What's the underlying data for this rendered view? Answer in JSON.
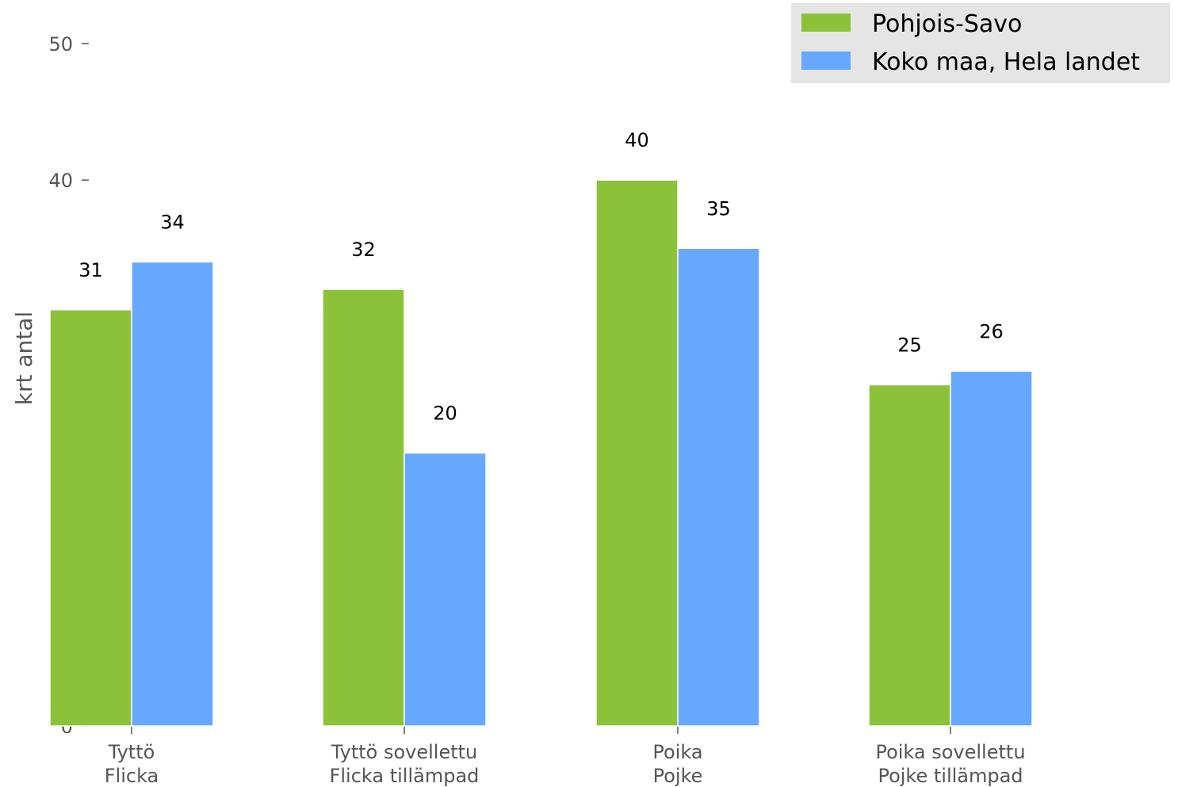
{
  "chart_data": {
    "type": "bar",
    "categories": [
      [
        "Tyttö",
        "Flicka"
      ],
      [
        "Tyttö sovellettu",
        "Flicka tillämpad"
      ],
      [
        "Poika",
        "Pojke"
      ],
      [
        "Poika sovellettu",
        "Pojke tillämpad"
      ]
    ],
    "series": [
      {
        "name": "Pohjois-Savo",
        "color": "#8bc23a",
        "values": [
          30.5,
          32,
          40,
          25
        ],
        "labels": [
          "31",
          "32",
          "40",
          "25"
        ]
      },
      {
        "name": "Koko maa, Hela landet",
        "color": "#66a8ff",
        "values": [
          34,
          20,
          35,
          26
        ],
        "labels": [
          "34",
          "20",
          "35",
          "26"
        ]
      }
    ],
    "ylabel": "krt antal",
    "ylim": [
      0,
      50
    ],
    "yticks": [
      0,
      10,
      20,
      30,
      40,
      50
    ],
    "grid": false,
    "legend_position": "top-right",
    "legend_background": "#e5e5e5",
    "axis_text_color": "#555555"
  }
}
